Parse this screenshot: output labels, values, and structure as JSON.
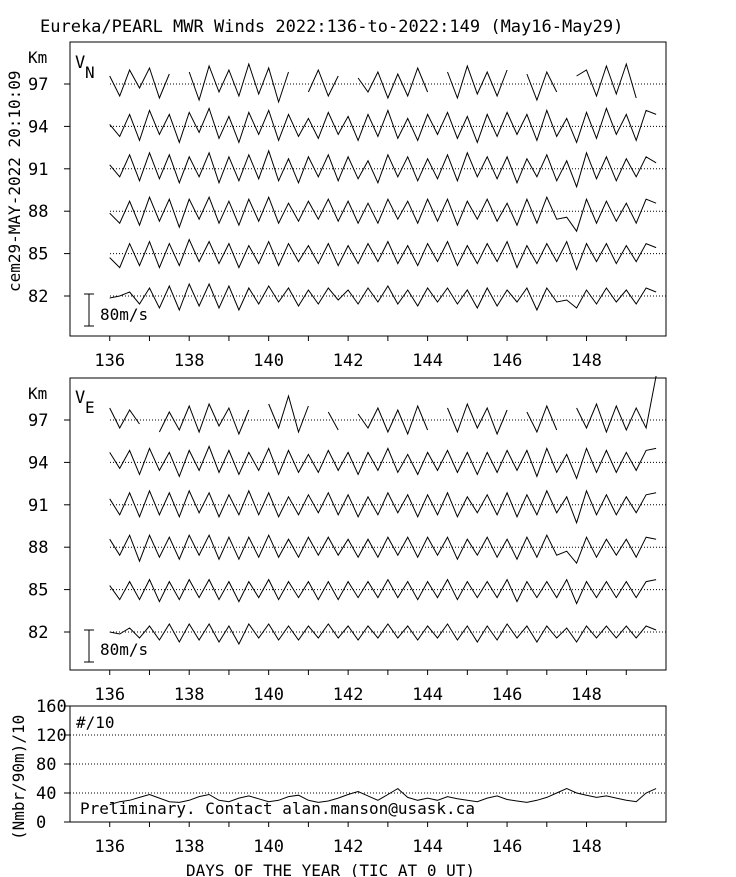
{
  "title": "Eureka/PEARL MWR Winds 2022:136-to-2022:149 (May16-May29)",
  "side_label": "cem29-MAY-2022 20:10:09",
  "colors": {
    "background": "#ffffff",
    "ink": "#000000"
  },
  "chart_data": [
    {
      "type": "line",
      "panel": "V_N",
      "label_main": "V",
      "label_sub": "N",
      "ylabel": "Km",
      "yticks": [
        "97",
        "94",
        "91",
        "88",
        "85",
        "82"
      ],
      "altitudes_km": [
        97,
        94,
        91,
        88,
        85,
        82
      ],
      "scale_label": "80m/s",
      "scale_value_ms": 80,
      "xlim": [
        135,
        150
      ],
      "xticks": [
        "136",
        "138",
        "140",
        "142",
        "144",
        "146",
        "148"
      ],
      "x_step_days": 0.25,
      "x_start": 136.0,
      "grid": "dotted baseline per altitude",
      "series_ms": {
        "97": [
          20,
          -30,
          35,
          -10,
          40,
          -35,
          25,
          null,
          30,
          -40,
          45,
          -20,
          35,
          -30,
          50,
          -25,
          40,
          -45,
          30,
          null,
          -20,
          35,
          -30,
          20,
          null,
          15,
          -20,
          30,
          -35,
          25,
          -30,
          40,
          -20,
          null,
          30,
          -35,
          45,
          -25,
          30,
          -30,
          35,
          null,
          25,
          -40,
          30,
          -20,
          null,
          20,
          35,
          -30,
          45,
          -25,
          50,
          -35,
          null,
          40
        ],
        "94": [
          5,
          -25,
          30,
          -35,
          40,
          -20,
          30,
          -40,
          35,
          -15,
          45,
          -30,
          25,
          -40,
          35,
          -20,
          40,
          -35,
          30,
          -25,
          20,
          -30,
          35,
          -20,
          25,
          -35,
          30,
          -25,
          40,
          -30,
          20,
          -35,
          30,
          -20,
          35,
          -30,
          25,
          -40,
          30,
          -25,
          35,
          -20,
          30,
          -35,
          40,
          -25,
          20,
          -40,
          35,
          -30,
          45,
          -20,
          30,
          -35,
          40,
          30
        ],
        "91": [
          10,
          -20,
          35,
          -30,
          40,
          -25,
          35,
          -35,
          30,
          -20,
          40,
          -35,
          30,
          -30,
          35,
          -25,
          45,
          -30,
          25,
          -35,
          30,
          -20,
          35,
          -30,
          30,
          -25,
          20,
          -35,
          35,
          -20,
          30,
          -30,
          25,
          -25,
          35,
          -30,
          40,
          -20,
          30,
          -25,
          30,
          -35,
          25,
          -20,
          35,
          -30,
          20,
          -45,
          40,
          -25,
          30,
          -30,
          25,
          -20,
          30,
          15
        ],
        "88": [
          -5,
          -30,
          25,
          -35,
          35,
          -25,
          30,
          -40,
          30,
          -20,
          35,
          -30,
          25,
          -35,
          30,
          -25,
          35,
          -30,
          20,
          -25,
          25,
          -20,
          30,
          -25,
          25,
          -30,
          20,
          -30,
          30,
          -20,
          25,
          -30,
          30,
          -25,
          30,
          -35,
          25,
          -20,
          30,
          -25,
          20,
          -35,
          30,
          -30,
          35,
          -20,
          -15,
          -50,
          30,
          -30,
          25,
          -25,
          20,
          -30,
          30,
          20
        ],
        "85": [
          -10,
          -35,
          25,
          -30,
          30,
          -35,
          25,
          -30,
          35,
          -20,
          30,
          -25,
          25,
          -35,
          20,
          -25,
          30,
          -30,
          25,
          -20,
          20,
          -25,
          25,
          -30,
          20,
          -25,
          25,
          -20,
          30,
          -25,
          20,
          -30,
          25,
          -20,
          30,
          -30,
          20,
          -25,
          25,
          -20,
          30,
          -35,
          20,
          -25,
          25,
          -20,
          30,
          -40,
          25,
          -20,
          25,
          -25,
          20,
          -20,
          25,
          15
        ],
        "82": [
          -5,
          0,
          10,
          -20,
          20,
          -30,
          25,
          -35,
          30,
          -25,
          30,
          -30,
          25,
          -35,
          20,
          -20,
          25,
          -15,
          20,
          -25,
          15,
          -20,
          20,
          -10,
          15,
          -20,
          20,
          -15,
          25,
          -20,
          15,
          -25,
          20,
          -15,
          20,
          -20,
          15,
          -30,
          20,
          -25,
          15,
          -15,
          20,
          -35,
          20,
          -15,
          -10,
          -30,
          15,
          -20,
          20,
          -15,
          15,
          -20,
          20,
          10
        ]
      }
    },
    {
      "type": "line",
      "panel": "V_E",
      "label_main": "V",
      "label_sub": "E",
      "ylabel": "Km",
      "yticks": [
        "97",
        "94",
        "91",
        "88",
        "85",
        "82"
      ],
      "altitudes_km": [
        97,
        94,
        91,
        88,
        85,
        82
      ],
      "scale_label": "80m/s",
      "scale_value_ms": 80,
      "xlim": [
        135,
        150
      ],
      "xticks": [
        "136",
        "138",
        "140",
        "142",
        "144",
        "146",
        "148"
      ],
      "x_step_days": 0.25,
      "x_start": 136.0,
      "grid": "dotted baseline per altitude",
      "series_ms": {
        "97": [
          30,
          -20,
          25,
          -10,
          null,
          -30,
          20,
          -25,
          35,
          -30,
          40,
          -15,
          30,
          -35,
          25,
          null,
          40,
          -20,
          60,
          -30,
          35,
          null,
          20,
          -25,
          null,
          15,
          -20,
          30,
          -30,
          25,
          -35,
          35,
          -25,
          null,
          30,
          -30,
          40,
          -20,
          30,
          -35,
          25,
          null,
          20,
          -30,
          35,
          -25,
          null,
          30,
          -20,
          40,
          -30,
          35,
          -25,
          30,
          -20,
          110
        ],
        "94": [
          25,
          -15,
          30,
          -30,
          35,
          -20,
          25,
          -35,
          30,
          -20,
          40,
          -25,
          30,
          -30,
          25,
          -20,
          35,
          -30,
          30,
          -25,
          20,
          -25,
          30,
          -20,
          25,
          -30,
          25,
          -20,
          35,
          -25,
          20,
          -30,
          25,
          -20,
          30,
          -25,
          25,
          -30,
          25,
          -25,
          30,
          -20,
          30,
          -35,
          35,
          -25,
          20,
          -40,
          35,
          -25,
          30,
          -25,
          25,
          -20,
          30,
          35
        ],
        "91": [
          15,
          -25,
          30,
          -30,
          35,
          -25,
          30,
          -30,
          35,
          -20,
          30,
          -30,
          25,
          -25,
          35,
          -25,
          30,
          -30,
          20,
          -25,
          25,
          -20,
          30,
          -25,
          25,
          -30,
          20,
          -25,
          30,
          -20,
          25,
          -30,
          25,
          -25,
          30,
          -30,
          20,
          -20,
          25,
          -25,
          30,
          -30,
          25,
          -25,
          35,
          -20,
          20,
          -45,
          35,
          -25,
          25,
          -25,
          20,
          -20,
          25,
          30
        ],
        "88": [
          20,
          -20,
          30,
          -35,
          30,
          -25,
          25,
          -30,
          30,
          -20,
          30,
          -30,
          25,
          -30,
          25,
          -25,
          30,
          -25,
          20,
          -25,
          25,
          -20,
          25,
          -20,
          20,
          -25,
          20,
          -25,
          25,
          -20,
          25,
          -25,
          25,
          -20,
          25,
          -30,
          20,
          -20,
          25,
          -25,
          20,
          -30,
          25,
          -25,
          30,
          -20,
          -10,
          -40,
          25,
          -25,
          20,
          -20,
          20,
          -25,
          25,
          20
        ],
        "85": [
          10,
          -25,
          20,
          -25,
          25,
          -30,
          20,
          -25,
          25,
          -20,
          25,
          -25,
          20,
          -30,
          20,
          -20,
          25,
          -25,
          20,
          -20,
          20,
          -25,
          20,
          -25,
          20,
          -20,
          20,
          -20,
          25,
          -20,
          20,
          -25,
          20,
          -20,
          25,
          -25,
          20,
          -20,
          20,
          -20,
          25,
          -30,
          20,
          -20,
          20,
          -20,
          25,
          -35,
          20,
          -20,
          20,
          -20,
          20,
          -20,
          20,
          25
        ],
        "82": [
          0,
          -5,
          10,
          -15,
          15,
          -20,
          20,
          -25,
          20,
          -20,
          20,
          -25,
          15,
          -30,
          20,
          -15,
          20,
          -20,
          15,
          -20,
          15,
          -15,
          20,
          -15,
          15,
          -20,
          15,
          -15,
          20,
          -15,
          15,
          -20,
          15,
          -15,
          20,
          -20,
          15,
          -25,
          15,
          -20,
          20,
          -15,
          15,
          -25,
          15,
          -15,
          10,
          -25,
          15,
          -15,
          15,
          -15,
          15,
          -15,
          15,
          5
        ]
      }
    },
    {
      "type": "line",
      "panel": "counts",
      "inset_label": "#/10",
      "ylabel": "(Nmbr/90m)/10",
      "xlabel": "DAYS OF THE YEAR (TIC AT 0 UT)",
      "ylim": [
        0,
        160
      ],
      "yticks": [
        "160",
        "120",
        "80",
        "40",
        "0"
      ],
      "xlim": [
        135,
        150
      ],
      "xticks": [
        "136",
        "138",
        "140",
        "142",
        "144",
        "146",
        "148"
      ],
      "x_step_days": 0.25,
      "x_start": 136.0,
      "grid": "dotted at 40, 80, 120",
      "values": [
        24,
        28,
        30,
        34,
        38,
        33,
        28,
        27,
        30,
        35,
        38,
        30,
        28,
        33,
        36,
        32,
        28,
        30,
        35,
        37,
        30,
        27,
        29,
        33,
        38,
        42,
        36,
        30,
        38,
        46,
        34,
        30,
        33,
        30,
        35,
        32,
        30,
        28,
        33,
        36,
        31,
        29,
        27,
        30,
        34,
        40,
        46,
        40,
        37,
        34,
        36,
        33,
        30,
        28,
        40,
        46
      ],
      "annotation": "Preliminary. Contact alan.manson@usask.ca"
    }
  ]
}
